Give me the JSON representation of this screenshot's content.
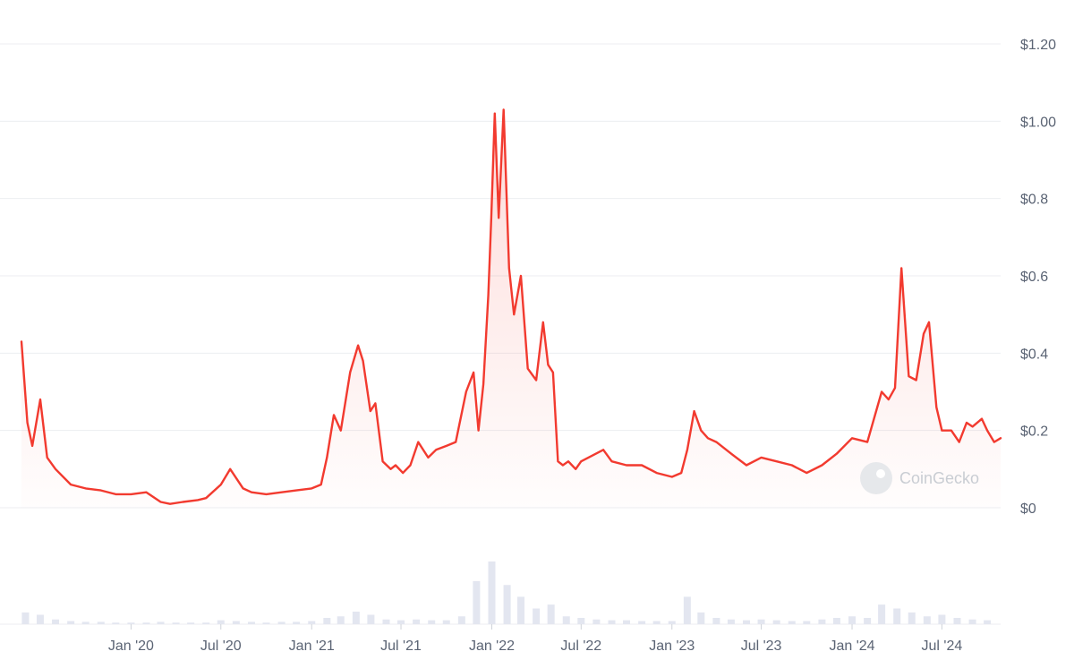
{
  "watermark": "CoinGecko",
  "colors": {
    "line": "#f23a2f",
    "grid": "#eceef1",
    "volume": "#e3e6f0",
    "label": "#5b6474",
    "fill": "#f23a2f"
  },
  "chart_data": {
    "type": "line",
    "title": "",
    "xlabel": "",
    "ylabel": "",
    "y_axis_position": "right",
    "ylim": [
      0,
      1.2
    ],
    "y_ticks": [
      0,
      0.2,
      0.4,
      0.6,
      0.8,
      1.0,
      1.2
    ],
    "y_tick_labels": [
      "$0",
      "$0.2",
      "$0.4",
      "$0.6",
      "$0.8",
      "$1.00",
      "$1.20"
    ],
    "x_ticks": [
      "2020-01-01",
      "2020-07-01",
      "2021-01-01",
      "2021-07-01",
      "2022-01-01",
      "2022-07-01",
      "2023-01-01",
      "2023-07-01",
      "2024-01-01",
      "2024-07-01"
    ],
    "x_tick_labels": [
      "Jan '20",
      "Jul '20",
      "Jan '21",
      "Jul '21",
      "Jan '22",
      "Jul '22",
      "Jan '23",
      "Jul '23",
      "Jan '24",
      "Jul '24"
    ],
    "xlim": [
      "2019-05-24",
      "2024-10-28"
    ],
    "grid": true,
    "series": [
      {
        "x": [
          "2019-05-24",
          "2019-06-05",
          "2019-06-15",
          "2019-07-01",
          "2019-07-15",
          "2019-08-01",
          "2019-09-01",
          "2019-10-01",
          "2019-11-01",
          "2019-12-01",
          "2020-01-01",
          "2020-02-01",
          "2020-03-01",
          "2020-03-20",
          "2020-04-15",
          "2020-05-15",
          "2020-06-01",
          "2020-07-01",
          "2020-07-20",
          "2020-08-15",
          "2020-09-01",
          "2020-10-01",
          "2020-11-01",
          "2020-12-01",
          "2021-01-01",
          "2021-01-20",
          "2021-02-01",
          "2021-02-15",
          "2021-03-01",
          "2021-03-20",
          "2021-04-05",
          "2021-04-15",
          "2021-04-30",
          "2021-05-10",
          "2021-05-25",
          "2021-06-10",
          "2021-06-20",
          "2021-07-05",
          "2021-07-20",
          "2021-08-05",
          "2021-08-25",
          "2021-09-10",
          "2021-10-01",
          "2021-10-20",
          "2021-11-10",
          "2021-11-25",
          "2021-12-05",
          "2021-12-15",
          "2021-12-25",
          "2021-12-31",
          "2022-01-07",
          "2022-01-15",
          "2022-01-25",
          "2022-02-05",
          "2022-02-15",
          "2022-03-01",
          "2022-03-15",
          "2022-04-01",
          "2022-04-15",
          "2022-04-25",
          "2022-05-05",
          "2022-05-15",
          "2022-05-25",
          "2022-06-05",
          "2022-06-20",
          "2022-07-01",
          "2022-08-15",
          "2022-09-01",
          "2022-10-01",
          "2022-11-01",
          "2022-12-01",
          "2023-01-01",
          "2023-01-20",
          "2023-02-01",
          "2023-02-15",
          "2023-03-01",
          "2023-03-15",
          "2023-04-01",
          "2023-05-01",
          "2023-06-01",
          "2023-07-01",
          "2023-08-01",
          "2023-09-01",
          "2023-10-01",
          "2023-11-01",
          "2023-12-01",
          "2024-01-01",
          "2024-02-01",
          "2024-03-01",
          "2024-03-15",
          "2024-03-28",
          "2024-04-10",
          "2024-04-25",
          "2024-05-10",
          "2024-05-25",
          "2024-06-05",
          "2024-06-20",
          "2024-07-01",
          "2024-07-20",
          "2024-08-05",
          "2024-08-20",
          "2024-09-01",
          "2024-09-20",
          "2024-10-01",
          "2024-10-15",
          "2024-10-28"
        ],
        "y": [
          0.43,
          0.22,
          0.16,
          0.28,
          0.13,
          0.1,
          0.06,
          0.05,
          0.045,
          0.035,
          0.035,
          0.04,
          0.015,
          0.01,
          0.015,
          0.02,
          0.025,
          0.06,
          0.1,
          0.05,
          0.04,
          0.035,
          0.04,
          0.045,
          0.05,
          0.06,
          0.13,
          0.24,
          0.2,
          0.35,
          0.42,
          0.38,
          0.25,
          0.27,
          0.12,
          0.1,
          0.11,
          0.09,
          0.11,
          0.17,
          0.13,
          0.15,
          0.16,
          0.17,
          0.3,
          0.35,
          0.2,
          0.32,
          0.55,
          0.75,
          1.02,
          0.75,
          1.03,
          0.62,
          0.5,
          0.6,
          0.36,
          0.33,
          0.48,
          0.37,
          0.35,
          0.12,
          0.11,
          0.12,
          0.1,
          0.12,
          0.15,
          0.12,
          0.11,
          0.11,
          0.09,
          0.08,
          0.09,
          0.15,
          0.25,
          0.2,
          0.18,
          0.17,
          0.14,
          0.11,
          0.13,
          0.12,
          0.11,
          0.09,
          0.11,
          0.14,
          0.18,
          0.17,
          0.3,
          0.28,
          0.31,
          0.62,
          0.34,
          0.33,
          0.45,
          0.48,
          0.26,
          0.2,
          0.2,
          0.17,
          0.22,
          0.21,
          0.23,
          0.2,
          0.17,
          0.18
        ]
      }
    ],
    "volume": {
      "x": [
        "2019-06-01",
        "2019-07-01",
        "2019-08-01",
        "2019-09-01",
        "2019-10-01",
        "2019-11-01",
        "2019-12-01",
        "2020-01-01",
        "2020-02-01",
        "2020-03-01",
        "2020-04-01",
        "2020-05-01",
        "2020-06-01",
        "2020-07-01",
        "2020-08-01",
        "2020-09-01",
        "2020-10-01",
        "2020-11-01",
        "2020-12-01",
        "2021-01-01",
        "2021-02-01",
        "2021-03-01",
        "2021-04-01",
        "2021-05-01",
        "2021-06-01",
        "2021-07-01",
        "2021-08-01",
        "2021-09-01",
        "2021-10-01",
        "2021-11-01",
        "2021-12-01",
        "2022-01-01",
        "2022-02-01",
        "2022-03-01",
        "2022-04-01",
        "2022-05-01",
        "2022-06-01",
        "2022-07-01",
        "2022-08-01",
        "2022-09-01",
        "2022-10-01",
        "2022-11-01",
        "2022-12-01",
        "2023-01-01",
        "2023-02-01",
        "2023-03-01",
        "2023-04-01",
        "2023-05-01",
        "2023-06-01",
        "2023-07-01",
        "2023-08-01",
        "2023-09-01",
        "2023-10-01",
        "2023-11-01",
        "2023-12-01",
        "2024-01-01",
        "2024-02-01",
        "2024-03-01",
        "2024-04-01",
        "2024-05-01",
        "2024-06-01",
        "2024-07-01",
        "2024-08-01",
        "2024-09-01",
        "2024-10-01"
      ],
      "values": [
        0.15,
        0.12,
        0.06,
        0.04,
        0.03,
        0.03,
        0.02,
        0.02,
        0.02,
        0.03,
        0.02,
        0.02,
        0.02,
        0.05,
        0.04,
        0.03,
        0.02,
        0.03,
        0.03,
        0.04,
        0.08,
        0.1,
        0.16,
        0.12,
        0.06,
        0.05,
        0.06,
        0.05,
        0.05,
        0.1,
        0.55,
        0.8,
        0.5,
        0.35,
        0.2,
        0.25,
        0.1,
        0.08,
        0.06,
        0.05,
        0.05,
        0.04,
        0.04,
        0.04,
        0.35,
        0.15,
        0.08,
        0.06,
        0.05,
        0.06,
        0.05,
        0.04,
        0.04,
        0.06,
        0.08,
        0.1,
        0.08,
        0.25,
        0.2,
        0.15,
        0.1,
        0.12,
        0.08,
        0.06,
        0.05
      ]
    }
  }
}
